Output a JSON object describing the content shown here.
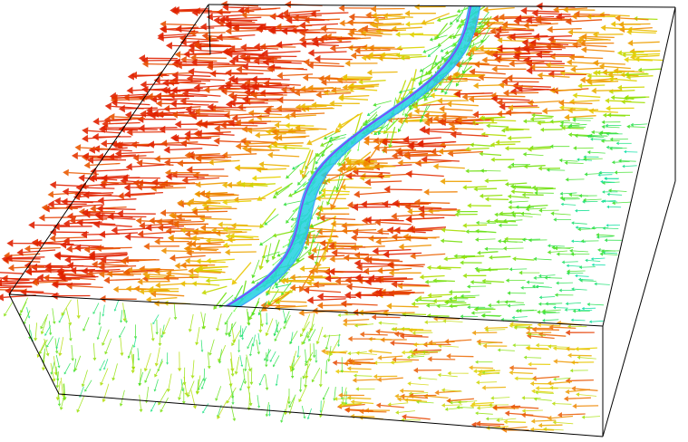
{
  "scene": {
    "type": "3d-vector-field-visualization",
    "background_color": "#ffffff",
    "bounding_box_color": "#000000",
    "colormap": [
      "#00c8ff",
      "#00e0a0",
      "#40e020",
      "#a0e000",
      "#e8d000",
      "#f08000",
      "#e02000"
    ],
    "fault_surface_colors": [
      "#20d0e0",
      "#40a0ff",
      "#8040ff",
      "#60ff40"
    ],
    "glyph": "arrow-icon"
  }
}
